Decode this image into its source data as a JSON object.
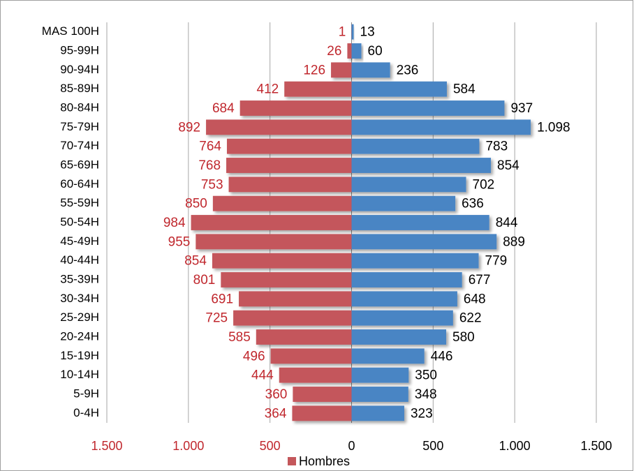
{
  "chart_data": {
    "type": "pyramid",
    "categories": [
      "MAS 100H",
      "95-99H",
      "90-94H",
      "85-89H",
      "80-84H",
      "75-79H",
      "70-74H",
      "65-69H",
      "60-64H",
      "55-59H",
      "50-54H",
      "45-49H",
      "40-44H",
      "35-39H",
      "30-34H",
      "25-29H",
      "20-24H",
      "15-19H",
      "10-14H",
      "5-9H",
      "0-4H"
    ],
    "series": [
      {
        "name": "Hombres",
        "color": "#c4575b",
        "label_color": "#c0272d",
        "values": [
          -1,
          -26,
          -126,
          -412,
          -684,
          -892,
          -764,
          -768,
          -753,
          -850,
          -984,
          -955,
          -854,
          -801,
          -691,
          -725,
          -585,
          -496,
          -444,
          -360,
          -364
        ],
        "value_labels": [
          "1",
          "26",
          "126",
          "412",
          "684",
          "892",
          "764",
          "768",
          "753",
          "850",
          "984",
          "955",
          "854",
          "801",
          "691",
          "725",
          "585",
          "496",
          "444",
          "360",
          "364"
        ]
      },
      {
        "color": "#4a85c4",
        "label_color": "#000000",
        "values": [
          13,
          60,
          236,
          584,
          937,
          1098,
          783,
          854,
          702,
          636,
          844,
          889,
          779,
          677,
          648,
          622,
          580,
          446,
          350,
          348,
          323
        ],
        "value_labels": [
          "13",
          "60",
          "236",
          "584",
          "937",
          "1.098",
          "783",
          "854",
          "702",
          "636",
          "844",
          "889",
          "779",
          "677",
          "648",
          "622",
          "580",
          "446",
          "350",
          "348",
          "323"
        ]
      }
    ],
    "xlim": [
      -1500,
      1500
    ],
    "xticks": [
      {
        "value": -1500,
        "label": "1.500"
      },
      {
        "value": -1000,
        "label": "1.000"
      },
      {
        "value": -500,
        "label": "500"
      },
      0,
      500,
      {
        "value": 1000,
        "label": "1.000"
      },
      {
        "value": 1500,
        "label": "1.500"
      }
    ],
    "grid": true,
    "legend": "bottom"
  }
}
